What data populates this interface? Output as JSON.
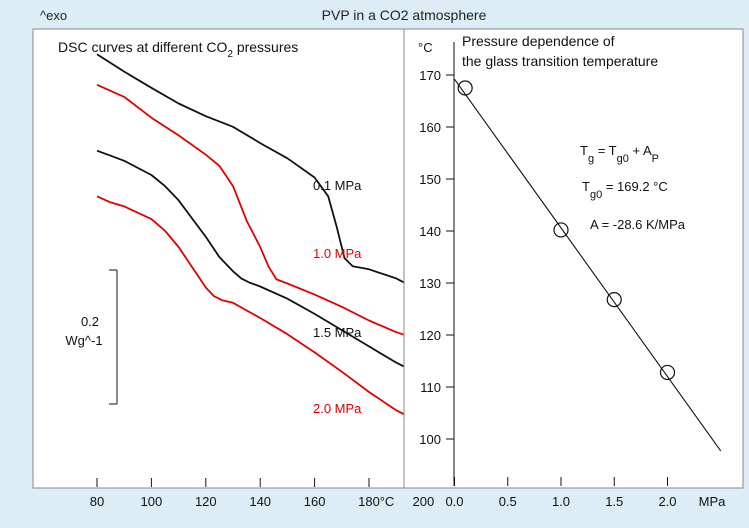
{
  "header": {
    "exo_label": "^exo",
    "title": "PVP in a  CO2 atmosphere"
  },
  "colors": {
    "background": "#dcedf6",
    "panel": "#ffffff",
    "black_curve": "#111111",
    "red_curve": "#e00000"
  },
  "chart_data": [
    {
      "type": "line",
      "title": "DSC curves at different CO2 pressures",
      "title_main": "DSC curves at different CO",
      "title_sub": "2",
      "title_tail": " pressures",
      "x_unit": "°C",
      "xlim": [
        80,
        210
      ],
      "x_ticks": [
        80,
        100,
        120,
        140,
        160,
        180,
        200
      ],
      "scale_bar": {
        "value_label": "0.2",
        "unit_label": "Wg^-1",
        "value": 0.2
      },
      "series": [
        {
          "name": "0.1 MPa",
          "color": "#111111",
          "x": [
            80,
            90,
            100,
            110,
            120,
            130,
            140,
            150,
            160,
            165,
            168,
            171,
            174,
            176,
            180,
            190,
            200,
            210
          ],
          "y": [
            8.1,
            7.76,
            7.44,
            7.13,
            6.88,
            6.67,
            6.35,
            6.05,
            5.67,
            5.3,
            4.72,
            4.08,
            3.92,
            3.9,
            3.86,
            3.68,
            3.4,
            3.1
          ]
        },
        {
          "name": "1.0 MPa",
          "color": "#e00000",
          "x": [
            80,
            90,
            100,
            110,
            120,
            125,
            130,
            135,
            140,
            143,
            146,
            150,
            160,
            170,
            180,
            190,
            200,
            210
          ],
          "y": [
            7.5,
            7.26,
            6.85,
            6.5,
            6.12,
            5.9,
            5.5,
            4.82,
            4.3,
            3.92,
            3.66,
            3.58,
            3.36,
            3.12,
            2.85,
            2.62,
            2.45,
            2.42
          ]
        },
        {
          "name": "1.5 MPa",
          "color": "#111111",
          "x": [
            80,
            85,
            90,
            100,
            105,
            110,
            115,
            120,
            125,
            130,
            133,
            136,
            140,
            150,
            160,
            170,
            180,
            190,
            200,
            210
          ],
          "y": [
            6.2,
            6.1,
            6.0,
            5.72,
            5.5,
            5.22,
            4.86,
            4.5,
            4.1,
            3.82,
            3.68,
            3.6,
            3.52,
            3.28,
            2.98,
            2.66,
            2.34,
            2.02,
            1.75,
            1.62
          ]
        },
        {
          "name": "2.0 MPa",
          "color": "#e00000",
          "x": [
            80,
            85,
            90,
            100,
            105,
            110,
            115,
            120,
            123,
            126,
            130,
            140,
            150,
            160,
            170,
            180,
            190,
            200,
            205,
            210
          ],
          "y": [
            5.3,
            5.18,
            5.1,
            4.85,
            4.62,
            4.3,
            3.9,
            3.5,
            3.33,
            3.25,
            3.2,
            2.9,
            2.58,
            2.22,
            1.84,
            1.44,
            1.08,
            0.8,
            0.68,
            0.62
          ]
        }
      ]
    },
    {
      "type": "scatter",
      "title_line1": "Pressure dependence of",
      "title_line2": "the glass transition temperature",
      "y_unit": "°C",
      "x_unit": "MPa",
      "xlim": [
        0,
        2.5
      ],
      "ylim": [
        90,
        170
      ],
      "x_ticks": [
        "0.0",
        "0.5",
        "1.0",
        "1.5",
        "2.0"
      ],
      "y_ticks": [
        100,
        110,
        120,
        130,
        140,
        150,
        160,
        170
      ],
      "points": [
        {
          "x": 0.1,
          "y": 167.5
        },
        {
          "x": 1.0,
          "y": 140.2
        },
        {
          "x": 1.5,
          "y": 126.8
        },
        {
          "x": 2.0,
          "y": 112.8
        }
      ],
      "fit_line": {
        "x": [
          0.0,
          2.5
        ],
        "y": [
          169.2,
          97.7
        ]
      },
      "equation": {
        "tg": "T",
        "tg_sub": "g",
        "eq": " = T",
        "tg0_sub": "g0",
        "plus": " + A",
        "ap_sub": "P",
        "tg0_label": "T",
        "tg0_label_sub": "g0",
        "tg0_value": " = 169.2 °C",
        "a_value": "A = -28.6 K/MPa"
      }
    }
  ]
}
